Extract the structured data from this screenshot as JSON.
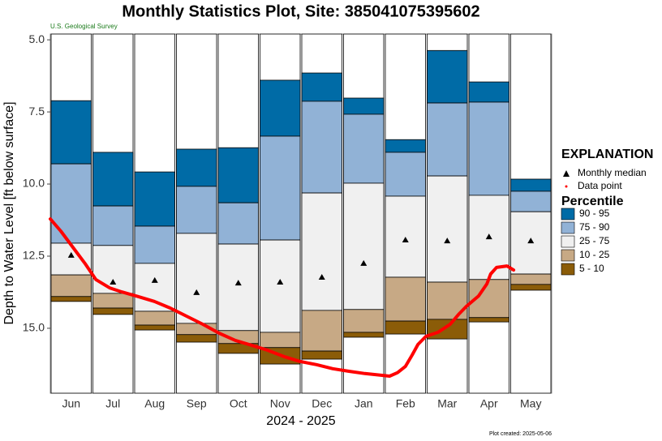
{
  "chart_data": {
    "type": "percentile-box",
    "title": "Monthly Statistics Plot, Site: 385041075395602",
    "subtitle": "U.S. Geological Survey",
    "footnote": "Plot created: 2025-05-06",
    "y_label": "Depth to Water Level [ft below surface]",
    "x_label": "2024 - 2025",
    "y_inverted": true,
    "ylim": [
      4.8,
      17.25
    ],
    "yticks": [
      {
        "value": 5,
        "label": "5.0"
      },
      7.5,
      {
        "value": 10,
        "label": "10.0"
      },
      12.5,
      {
        "value": 15,
        "label": "15.0"
      }
    ],
    "categories": [
      "Jun",
      "Jul",
      "Aug",
      "Sep",
      "Oct",
      "Nov",
      "Dec",
      "Jan",
      "Feb",
      "Mar",
      "Apr",
      "May"
    ],
    "legend_title": "EXPLANATION",
    "bands_title": "Percentile",
    "bands": [
      {
        "name": "90 - 95",
        "color": "#006ba6"
      },
      {
        "name": "75 - 90",
        "color": "#91b2d6"
      },
      {
        "name": "25 - 75",
        "color": "#f0f0f0"
      },
      {
        "name": "10 - 25",
        "color": "#c7a985"
      },
      {
        "name": "5 - 10",
        "color": "#8b5c08"
      }
    ],
    "boundaries": [
      [
        7.11,
        8.9,
        9.58,
        8.79,
        8.74,
        6.4,
        6.15,
        7.02,
        8.46,
        5.37,
        6.46,
        9.83
      ],
      [
        9.3,
        10.76,
        11.46,
        10.08,
        10.65,
        8.34,
        7.13,
        7.58,
        8.9,
        7.19,
        7.16,
        10.25
      ],
      [
        12.05,
        12.13,
        12.75,
        11.71,
        12.08,
        11.94,
        10.31,
        9.97,
        10.42,
        9.72,
        10.39,
        10.96
      ],
      [
        13.15,
        13.79,
        14.41,
        14.83,
        15.08,
        15.14,
        14.38,
        14.35,
        13.23,
        13.4,
        13.31,
        13.12
      ],
      [
        13.9,
        14.3,
        14.89,
        15.22,
        15.53,
        15.67,
        15.79,
        15.14,
        14.75,
        14.69,
        14.63,
        13.48
      ],
      [
        14.07,
        14.52,
        15.06,
        15.48,
        15.87,
        16.24,
        16.07,
        15.31,
        15.2,
        15.37,
        14.78,
        13.68
      ]
    ],
    "median": {
      "name": "Monthly median",
      "color": "#000000",
      "values": [
        12.47,
        13.4,
        13.34,
        13.76,
        13.43,
        13.4,
        13.23,
        12.75,
        11.94,
        11.97,
        11.83,
        11.97
      ]
    },
    "data_points": {
      "name": "Data point",
      "color": "#ff0000",
      "xlim": [
        0,
        12
      ],
      "x": [
        0,
        0.25,
        0.54,
        0.83,
        1.09,
        1.42,
        1.71,
        2.1,
        2.49,
        2.87,
        3.26,
        3.65,
        4.04,
        4.43,
        4.82,
        5.2,
        5.59,
        5.98,
        6.37,
        6.76,
        7.15,
        7.53,
        7.92,
        8.12,
        8.31,
        8.5,
        8.66,
        8.8,
        8.99,
        9.28,
        9.57,
        9.77,
        9.96,
        10.25,
        10.45,
        10.54,
        10.68,
        10.93,
        11.09
      ],
      "values": [
        11.21,
        11.63,
        12.19,
        12.75,
        13.31,
        13.6,
        13.74,
        13.9,
        14.07,
        14.3,
        14.58,
        14.86,
        15.17,
        15.42,
        15.59,
        15.76,
        15.98,
        16.15,
        16.26,
        16.4,
        16.49,
        16.57,
        16.63,
        16.66,
        16.54,
        16.32,
        15.93,
        15.56,
        15.28,
        15.14,
        14.86,
        14.52,
        14.24,
        13.88,
        13.46,
        13.12,
        12.89,
        12.84,
        12.98
      ]
    }
  }
}
